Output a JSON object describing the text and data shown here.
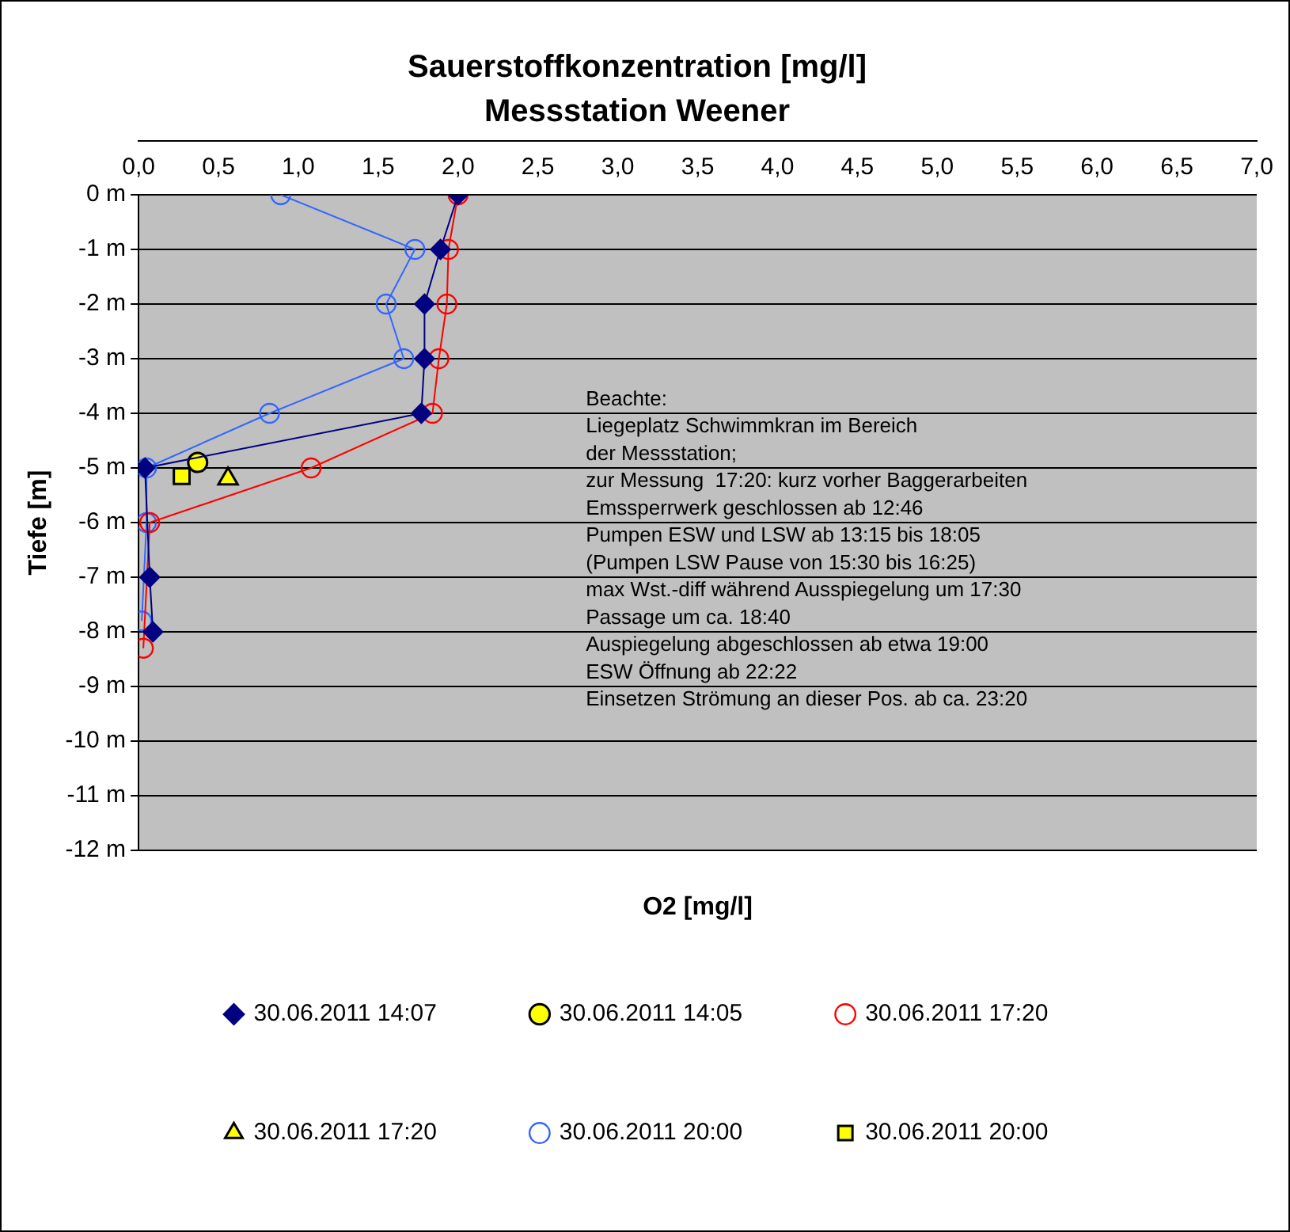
{
  "chart_data": {
    "type": "line",
    "title": "Sauerstoffkonzentration [mg/l]",
    "subtitle": "Messstation Weener",
    "xlabel": "O2 [mg/l]",
    "ylabel": "Tiefe [m]",
    "xlim": [
      0,
      7
    ],
    "xticks": [
      {
        "value": 0,
        "label": "0,0"
      },
      {
        "value": 0.5,
        "label": "0,5"
      },
      {
        "value": 1,
        "label": "1,0"
      },
      {
        "value": 1.5,
        "label": "1,5"
      },
      {
        "value": 2,
        "label": "2,0"
      },
      {
        "value": 2.5,
        "label": "2,5"
      },
      {
        "value": 3,
        "label": "3,0"
      },
      {
        "value": 3.5,
        "label": "3,5"
      },
      {
        "value": 4,
        "label": "4,0"
      },
      {
        "value": 4.5,
        "label": "4,5"
      },
      {
        "value": 5,
        "label": "5,0"
      },
      {
        "value": 5.5,
        "label": "5,5"
      },
      {
        "value": 6,
        "label": "6,0"
      },
      {
        "value": 6.5,
        "label": "6,5"
      },
      {
        "value": 7,
        "label": "7,0"
      }
    ],
    "ylim": [
      -12,
      0
    ],
    "yticks": [
      {
        "value": 0,
        "label": "0 m"
      },
      {
        "value": -1,
        "label": "-1 m"
      },
      {
        "value": -2,
        "label": "-2 m"
      },
      {
        "value": -3,
        "label": "-3 m"
      },
      {
        "value": -4,
        "label": "-4 m"
      },
      {
        "value": -5,
        "label": "-5 m"
      },
      {
        "value": -6,
        "label": "-6 m"
      },
      {
        "value": -7,
        "label": "-7 m"
      },
      {
        "value": -8,
        "label": "-8 m"
      },
      {
        "value": -9,
        "label": "-9 m"
      },
      {
        "value": -10,
        "label": "-10 m"
      },
      {
        "value": -11,
        "label": "-11 m"
      },
      {
        "value": -12,
        "label": "-12 m"
      }
    ],
    "grid": "y",
    "legend": "bottom",
    "series": [
      {
        "name": "30.06.2011 14:07",
        "type": "line",
        "marker": "diamond",
        "color": "#000080",
        "x": [
          2.0,
          1.89,
          1.79,
          1.79,
          1.77,
          0.04,
          0.07,
          0.09
        ],
        "values": [
          0,
          -1,
          -2,
          -3,
          -4,
          -5,
          -7,
          -8
        ]
      },
      {
        "name": "30.06.2011 14:05",
        "type": "scatter",
        "marker": "circle",
        "color": "#ffff00",
        "x": [
          0.37
        ],
        "values": [
          -4.9
        ]
      },
      {
        "name": "30.06.2011 17:20",
        "type": "line",
        "marker": "circle",
        "color": "#ff0000",
        "x": [
          2.0,
          1.94,
          1.93,
          1.88,
          1.84,
          1.08,
          0.07,
          0.03
        ],
        "values": [
          0,
          -1,
          -2,
          -3,
          -4,
          -5,
          -6,
          -8.3
        ]
      },
      {
        "name": "30.06.2011 17:20",
        "type": "scatter",
        "marker": "triangle",
        "color": "#ffff00",
        "x": [
          0.56
        ],
        "values": [
          -5.2
        ]
      },
      {
        "name": "30.06.2011 20:00",
        "type": "line",
        "marker": "circle",
        "color": "#3366ff",
        "x": [
          0.89,
          1.73,
          1.55,
          1.66,
          0.82,
          0.05,
          0.05,
          0.02
        ],
        "values": [
          0,
          -1,
          -2,
          -3,
          -4,
          -5,
          -6,
          -7.8
        ]
      },
      {
        "name": "30.06.2011 20:00",
        "type": "scatter",
        "marker": "square",
        "color": "#ffff00",
        "x": [
          0.27
        ],
        "values": [
          -5.15
        ]
      }
    ],
    "annotations": [
      "Beachte:",
      "Liegeplatz Schwimmkran im Bereich",
      "der Messstation;",
      "zur Messung  17:20: kurz vorher Baggerarbeiten",
      "Emssperrwerk geschlossen ab 12:46",
      "Pumpen ESW und LSW ab 13:15 bis 18:05",
      "(Pumpen LSW Pause von 15:30 bis 16:25)",
      "max Wst.-diff während Ausspiegelung um 17:30",
      "Passage um ca. 18:40",
      "Auspiegelung abgeschlossen ab etwa 19:00",
      "ESW Öffnung ab 22:22",
      "Einsetzen Strömung an dieser Pos. ab ca. 23:20"
    ]
  }
}
